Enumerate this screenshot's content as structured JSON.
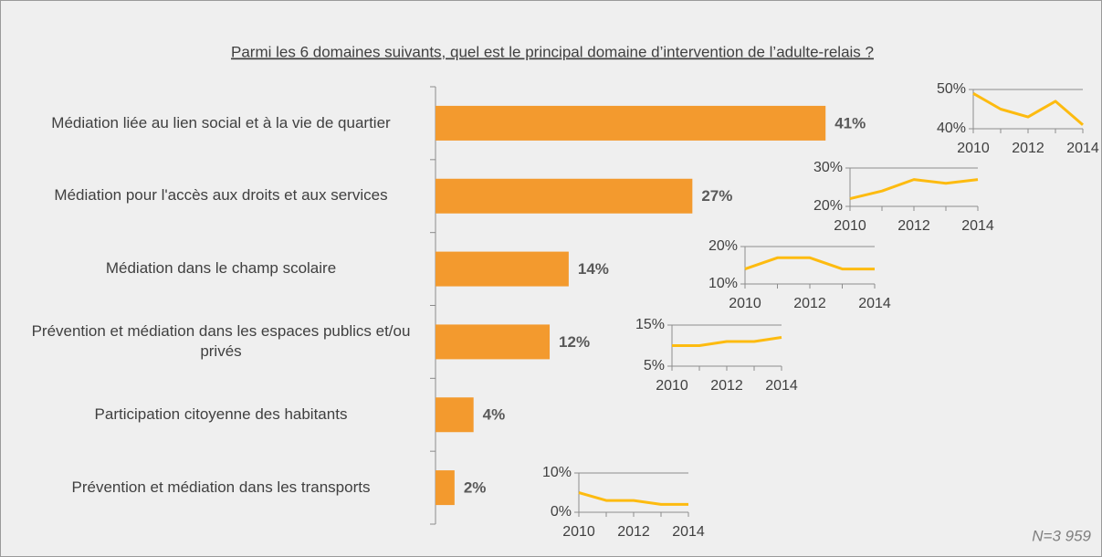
{
  "chart_data": [
    {
      "type": "bar",
      "orientation": "horizontal",
      "title": "Parmi les 6 domaines suivants, quel est le principal domaine d’intervention de l’adulte-relais ?",
      "categories": [
        "Médiation liée au lien social et à la vie de quartier",
        "Médiation pour l'accès aux droits et aux services",
        "Médiation dans le champ scolaire",
        "Prévention et médiation dans les espaces publics et/ou privés",
        "Participation citoyenne des habitants",
        "Prévention et médiation dans les transports"
      ],
      "values": [
        41,
        27,
        14,
        12,
        4,
        2
      ],
      "value_labels": [
        "41%",
        "27%",
        "14%",
        "12%",
        "4%",
        "2%"
      ],
      "color": "#f39a2e",
      "footnote": "N=3 959"
    },
    {
      "type": "line",
      "x": [
        2010,
        2011,
        2012,
        2013,
        2014
      ],
      "series": [
        {
          "color": "#fdbb10",
          "values": [
            49,
            45,
            43,
            47,
            41
          ]
        }
      ],
      "xlim": [
        2010,
        2014
      ],
      "xticks": [
        2010,
        2012,
        2014
      ],
      "ylim": [
        40,
        50
      ],
      "yticks": [
        {
          "value": 40,
          "label": "40%"
        },
        {
          "value": 50,
          "label": "50%"
        }
      ]
    },
    {
      "type": "line",
      "x": [
        2010,
        2011,
        2012,
        2013,
        2014
      ],
      "series": [
        {
          "color": "#fdbb10",
          "values": [
            22,
            24,
            27,
            26,
            27
          ]
        }
      ],
      "xlim": [
        2010,
        2014
      ],
      "xticks": [
        2010,
        2012,
        2014
      ],
      "ylim": [
        20,
        30
      ],
      "yticks": [
        {
          "value": 20,
          "label": "20%"
        },
        {
          "value": 30,
          "label": "30%"
        }
      ]
    },
    {
      "type": "line",
      "x": [
        2010,
        2011,
        2012,
        2013,
        2014
      ],
      "series": [
        {
          "color": "#fdbb10",
          "values": [
            14,
            17,
            17,
            14,
            14
          ]
        }
      ],
      "xlim": [
        2010,
        2014
      ],
      "xticks": [
        2010,
        2012,
        2014
      ],
      "ylim": [
        10,
        20
      ],
      "yticks": [
        {
          "value": 10,
          "label": "10%"
        },
        {
          "value": 20,
          "label": "20%"
        }
      ]
    },
    {
      "type": "line",
      "x": [
        2010,
        2011,
        2012,
        2013,
        2014
      ],
      "series": [
        {
          "color": "#fdbb10",
          "values": [
            10,
            10,
            11,
            11,
            12
          ]
        }
      ],
      "xlim": [
        2010,
        2014
      ],
      "xticks": [
        2010,
        2012,
        2014
      ],
      "ylim": [
        5,
        15
      ],
      "yticks": [
        {
          "value": 5,
          "label": "5%"
        },
        {
          "value": 15,
          "label": "15%"
        }
      ]
    },
    {
      "type": "line",
      "x": [
        2010,
        2011,
        2012,
        2013,
        2014
      ],
      "series": [
        {
          "color": "#fdbb10",
          "values": [
            5,
            3,
            3,
            2,
            2
          ]
        }
      ],
      "xlim": [
        2010,
        2014
      ],
      "xticks": [
        2010,
        2012,
        2014
      ],
      "ylim": [
        0,
        10
      ],
      "yticks": [
        {
          "value": 0,
          "label": "0%"
        },
        {
          "value": 10,
          "label": "10%"
        }
      ]
    }
  ]
}
